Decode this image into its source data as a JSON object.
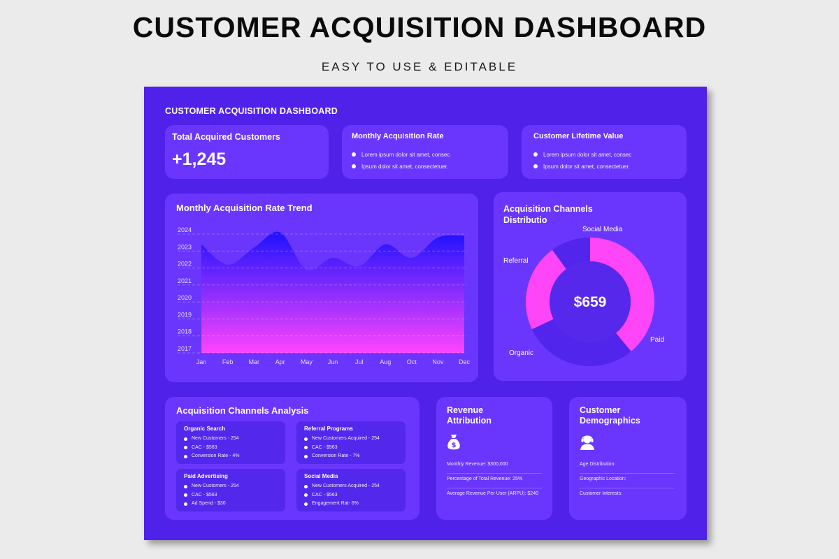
{
  "header": {
    "title": "CUSTOMER ACQUISITION DASHBOARD",
    "subtitle": "EASY TO USE & EDITABLE"
  },
  "dashboard": {
    "title": "CUSTOMER ACQUISITION DASHBOARD",
    "total_customers": {
      "title": "Total Acquired Customers",
      "value": "+1,245"
    },
    "monthly_rate": {
      "title": "Monthly Acquisition Rate",
      "items": [
        "Lorem ipsum dolor sit amet, consec",
        "Ipsum dolor sit amet, consectetuer."
      ]
    },
    "lifetime_value": {
      "title": "Customer Lifetime Value",
      "items": [
        "Lorem ipsum dolor sit amet, consec",
        "Ipsum dolor sit amet, consectetuer."
      ]
    },
    "trend": {
      "title": "Monthly Acquisition Rate Trend"
    },
    "distribution": {
      "title_line1": "Acquisition Channels",
      "title_line2": "Distributio",
      "center_value": "$659",
      "labels": {
        "social": "Social Media",
        "referral": "Referral",
        "paid": "Paid",
        "organic": "Organic"
      }
    },
    "analysis": {
      "title": "Acquisition Channels Analysis",
      "channels": [
        {
          "name": "Organic Search",
          "items": [
            "New Customers - 254",
            "CAC - $563",
            "Conversion Rate - 4%"
          ]
        },
        {
          "name": "Referral Programs",
          "items": [
            "New Customers Acquired - 254",
            "CAC - $563",
            "Conversion Rate - 7%"
          ]
        },
        {
          "name": "Paid Advertising",
          "items": [
            "New Customers - 254",
            "CAC - $563",
            "Ad Spend - $30"
          ]
        },
        {
          "name": "Social Media",
          "items": [
            "New Customers Acquired - 254",
            "CAC - $563",
            "Engagement Rat- 6%"
          ]
        }
      ]
    },
    "revenue": {
      "title_line1": "Revenue",
      "title_line2": "Attribution",
      "icon": "money-bag-icon",
      "rows": [
        "Monthly Revenue: $300,000",
        "Percentage of Total Revenue: 25%",
        "Average Revenue Per User (ARPU): $240"
      ]
    },
    "demographics": {
      "title_line1": "Customer",
      "title_line2": "Demographics",
      "icon": "person-headset-icon",
      "rows": [
        "Age Distribution:",
        "Geographic Location:",
        "Customer Interests:"
      ]
    }
  },
  "colors": {
    "page_bg": "#ebebeb",
    "board_bg": "#5022e9",
    "card_bg": "#6a36fd",
    "sub_card_bg": "#5327ec",
    "area_top": "#1d12ff",
    "area_bottom": "#ff44ff",
    "donut_magenta": "#ff45f8",
    "donut_purple": "#5125ec"
  },
  "chart_data": [
    {
      "type": "area",
      "title": "Monthly Acquisition Rate Trend",
      "categories": [
        "Jan",
        "Feb",
        "Mar",
        "Apr",
        "May",
        "Jun",
        "Jul",
        "Aug",
        "Oct",
        "Nov",
        "Dec"
      ],
      "y_ticks": [
        "2017",
        "2018",
        "2019",
        "2020",
        "2021",
        "2022",
        "2023",
        "2024"
      ],
      "values": [
        2023.4,
        2022.2,
        2023.2,
        2024.1,
        2021.9,
        2022.6,
        2022.1,
        2023.4,
        2022.6,
        2023.8,
        2023.9
      ],
      "ylim": [
        2017,
        2024
      ],
      "grid": true
    },
    {
      "type": "pie",
      "title": "Acquisition Channels Distributio",
      "center_label": "$659",
      "slices": [
        {
          "label": "Paid",
          "value": 39,
          "color": "#ff45f8"
        },
        {
          "label": "Organic",
          "value": 29,
          "color": "#5125ec"
        },
        {
          "label": "Referral",
          "value": 22,
          "color": "#ff45f8"
        },
        {
          "label": "Social Media",
          "value": 10,
          "color": "#5125ec"
        }
      ]
    }
  ]
}
